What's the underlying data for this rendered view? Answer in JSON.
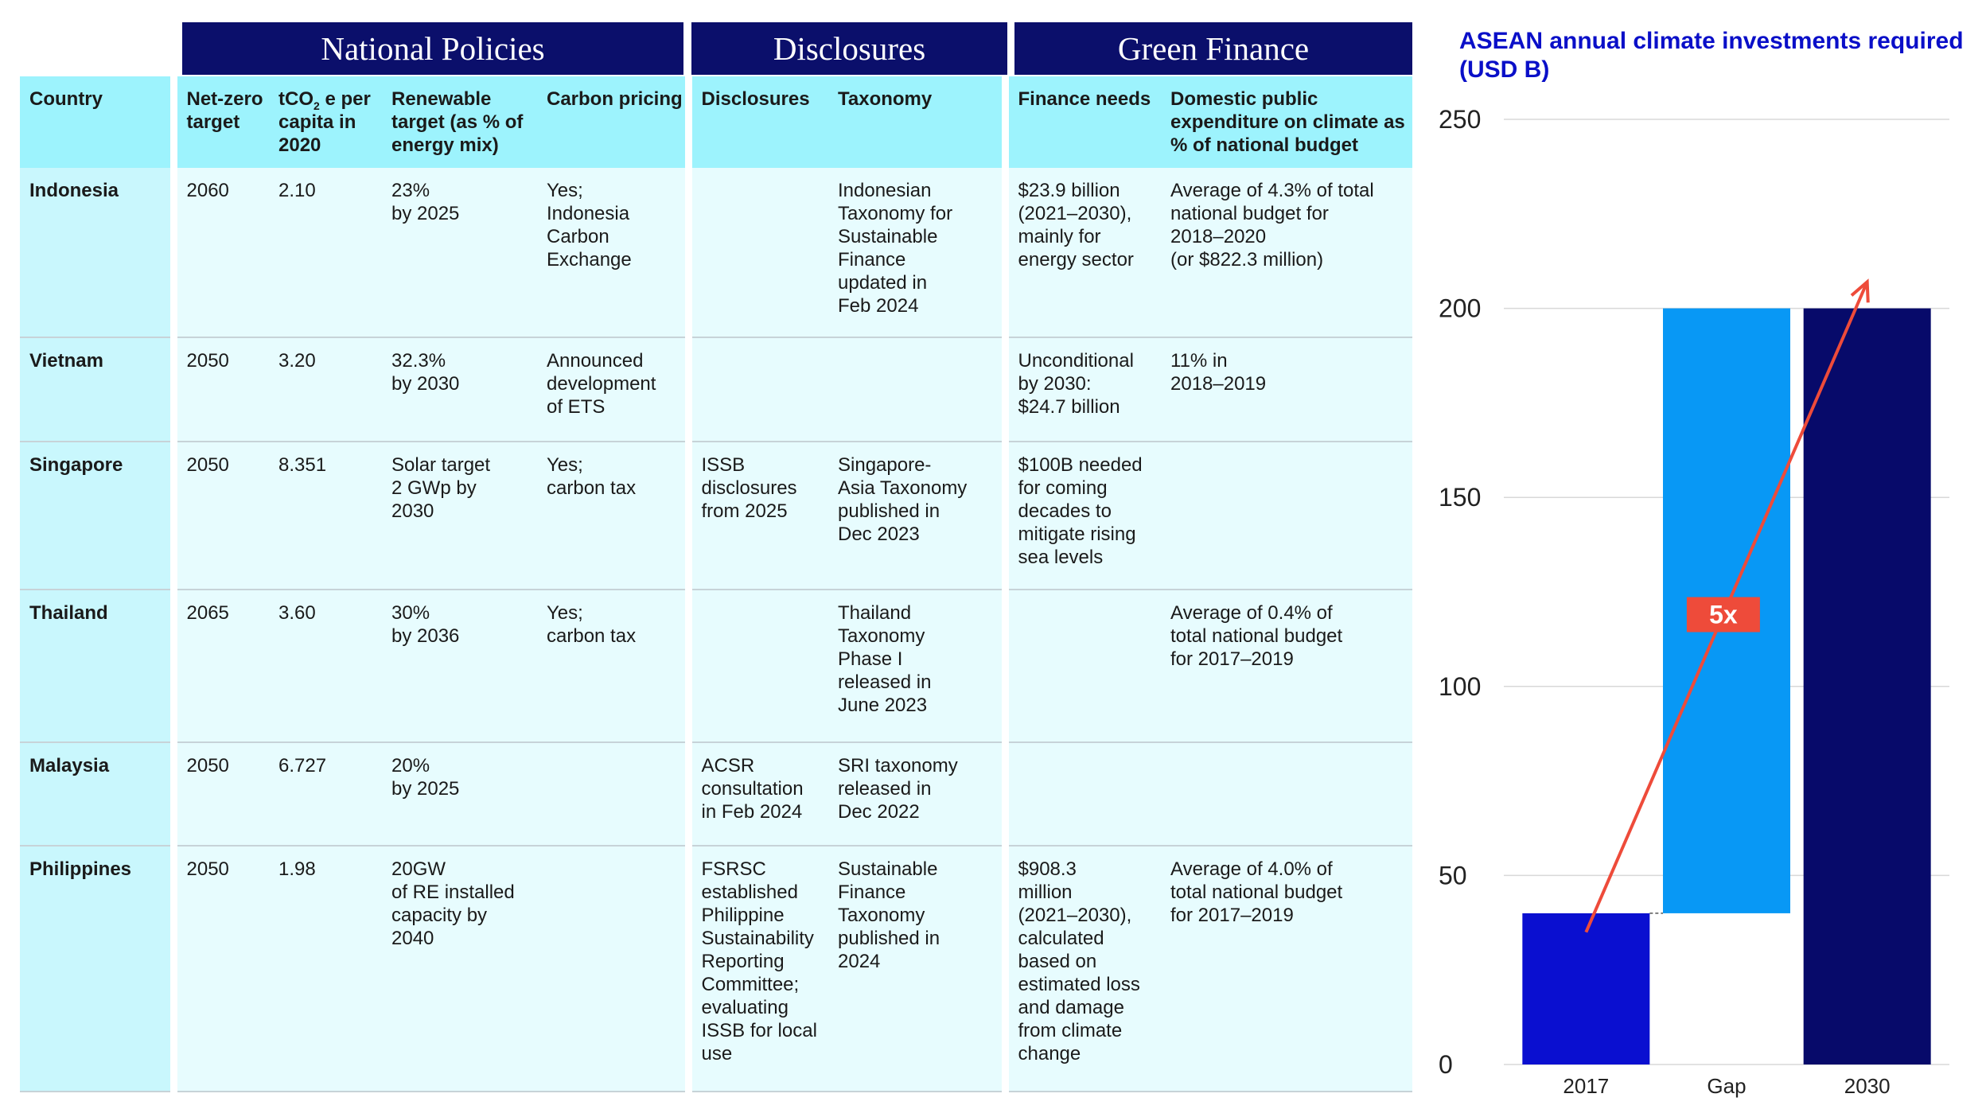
{
  "table": {
    "groups": [
      "National Policies",
      "Disclosures",
      "Green Finance"
    ],
    "headers": {
      "country": "Country",
      "net_zero": "Net-zero target",
      "tco2_pre": "tCO",
      "tco2_sub": "2",
      "tco2_post": " e per capita in 2020",
      "renewable": "Renewable target (as % of energy mix)",
      "carbon_pricing": "Carbon pricing",
      "disclosures": "Disclosures",
      "taxonomy": "Taxonomy",
      "finance_needs": "Finance needs",
      "public_expenditure": "Domestic public expenditure on climate as % of national budget"
    },
    "rows": [
      {
        "country": "Indonesia",
        "net_zero": "2060",
        "tco2": "2.10",
        "renewable": "23%\nby 2025",
        "carbon_pricing": "Yes;\nIndonesia\nCarbon\nExchange",
        "disclosures": "",
        "taxonomy": "Indonesian\nTaxonomy for\nSustainable\nFinance\nupdated in\nFeb 2024",
        "finance_needs": "$23.9 billion\n(2021–2030),\nmainly for\nenergy sector",
        "public_expenditure": "Average of 4.3% of total\nnational budget for\n2018–2020\n(or $822.3 million)"
      },
      {
        "country": "Vietnam",
        "net_zero": "2050",
        "tco2": "3.20",
        "renewable": "32.3%\nby 2030",
        "carbon_pricing": "Announced\ndevelopment\nof ETS",
        "disclosures": "",
        "taxonomy": "",
        "finance_needs": "Unconditional\nby 2030:\n$24.7 billion",
        "public_expenditure": "11% in\n2018–2019"
      },
      {
        "country": "Singapore",
        "net_zero": "2050",
        "tco2": "8.351",
        "renewable": "Solar target\n2 GWp by\n2030",
        "carbon_pricing": "Yes;\ncarbon tax",
        "disclosures": "ISSB\ndisclosures\nfrom 2025",
        "taxonomy": "Singapore-\nAsia Taxonomy\npublished in\nDec 2023",
        "finance_needs": "$100B needed\nfor coming\ndecades to\nmitigate rising\nsea levels",
        "public_expenditure": ""
      },
      {
        "country": "Thailand",
        "net_zero": "2065",
        "tco2": "3.60",
        "renewable": "30%\nby 2036",
        "carbon_pricing": "Yes;\ncarbon tax",
        "disclosures": "",
        "taxonomy": "Thailand\nTaxonomy\nPhase I\nreleased in\nJune 2023",
        "finance_needs": "",
        "public_expenditure": "Average of 0.4% of\ntotal national budget\nfor 2017–2019"
      },
      {
        "country": "Malaysia",
        "net_zero": "2050",
        "tco2": "6.727",
        "renewable": "20%\nby 2025",
        "carbon_pricing": "",
        "disclosures": "ACSR\nconsultation\nin Feb 2024",
        "taxonomy": "SRI taxonomy\nreleased in\nDec 2022",
        "finance_needs": "",
        "public_expenditure": ""
      },
      {
        "country": "Philippines",
        "net_zero": "2050",
        "tco2": "1.98",
        "renewable": "20GW\nof RE installed\ncapacity by\n2040",
        "carbon_pricing": "",
        "disclosures": "FSRSC\nestablished\nPhilippine\nSustainability\nReporting\nCommittee;\nevaluating\nISSB for local\nuse",
        "taxonomy": "Sustainable\nFinance\nTaxonomy\npublished in\n2024",
        "finance_needs": "$908.3\nmillion\n(2021–2030),\ncalculated\nbased on\nestimated loss\nand damage\nfrom climate\nchange",
        "public_expenditure": "Average of 4.0% of\ntotal national budget\nfor 2017–2019"
      }
    ]
  },
  "chart_data": {
    "type": "bar",
    "title": "ASEAN annual climate investments required (USD B)",
    "categories": [
      "2017",
      "Gap",
      "2030"
    ],
    "bars": [
      {
        "category": "2017",
        "start": 0,
        "end": 40
      },
      {
        "category": "Gap",
        "start": 40,
        "end": 200
      },
      {
        "category": "2030",
        "start": 0,
        "end": 200
      }
    ],
    "ylim": [
      0,
      250
    ],
    "yticks": [
      0,
      50,
      100,
      150,
      200,
      250
    ],
    "grid": true,
    "annotation": {
      "label": "5x",
      "arrow_from": [
        "2017",
        35
      ],
      "arrow_to": [
        "2030",
        207
      ],
      "label_at": 119
    },
    "colors": {
      "2017": "#0a0fd0",
      "Gap": "#0898f5",
      "2030": "#070a6a",
      "arrow": "#ee4b3a",
      "grid": "#d8d8d8"
    }
  }
}
